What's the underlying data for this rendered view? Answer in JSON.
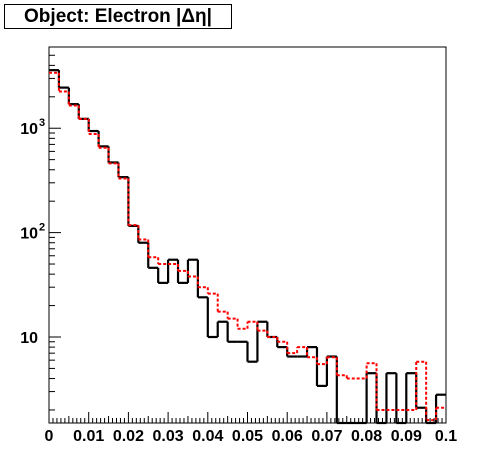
{
  "chart_data": {
    "type": "histogram",
    "title": "Object: Electron |Δη|",
    "xlabel": "",
    "ylabel": "",
    "xlim": [
      0,
      0.1
    ],
    "ylim": [
      1.5,
      6000
    ],
    "y_scale": "log",
    "bin_width": 0.0025,
    "x_ticks": [
      0,
      0.01,
      0.02,
      0.03,
      0.04,
      0.05,
      0.06,
      0.07,
      0.08,
      0.09,
      0.1
    ],
    "x_tick_labels": [
      "0",
      "0.01",
      "0.02",
      "0.03",
      "0.04",
      "0.05",
      "0.06",
      "0.07",
      "0.08",
      "0.09",
      "0.1"
    ],
    "y_ticks": [
      10,
      100,
      1000
    ],
    "y_tick_labels": [
      "10",
      "10",
      "10"
    ],
    "y_tick_exponents": [
      "",
      "2",
      "3"
    ],
    "series": [
      {
        "style": "solid",
        "color": "#000000",
        "values": [
          3600,
          2450,
          1700,
          1230,
          940,
          670,
          470,
          340,
          116,
          80,
          46,
          33,
          55,
          33,
          55,
          24,
          10,
          14,
          9,
          9,
          5.8,
          14,
          10,
          8,
          6.5,
          6.5,
          8,
          3.4,
          6.5,
          1.5,
          1.5,
          1.5,
          4.5,
          1.5,
          4.5,
          1.5,
          4.5,
          2.1,
          1.5,
          2.8
        ]
      },
      {
        "style": "dashed",
        "color": "#ff0000",
        "values": [
          3400,
          2250,
          1650,
          1230,
          880,
          650,
          460,
          330,
          118,
          86,
          58,
          50,
          50,
          43,
          38,
          30,
          26,
          17.5,
          15,
          12,
          14,
          11.5,
          10,
          9,
          7,
          8,
          6.4,
          5.5,
          6.4,
          4.3,
          4.0,
          4.0,
          5.6,
          2.0,
          2.0,
          2.0,
          2.0,
          5.8,
          1.6,
          2.1
        ]
      }
    ]
  }
}
